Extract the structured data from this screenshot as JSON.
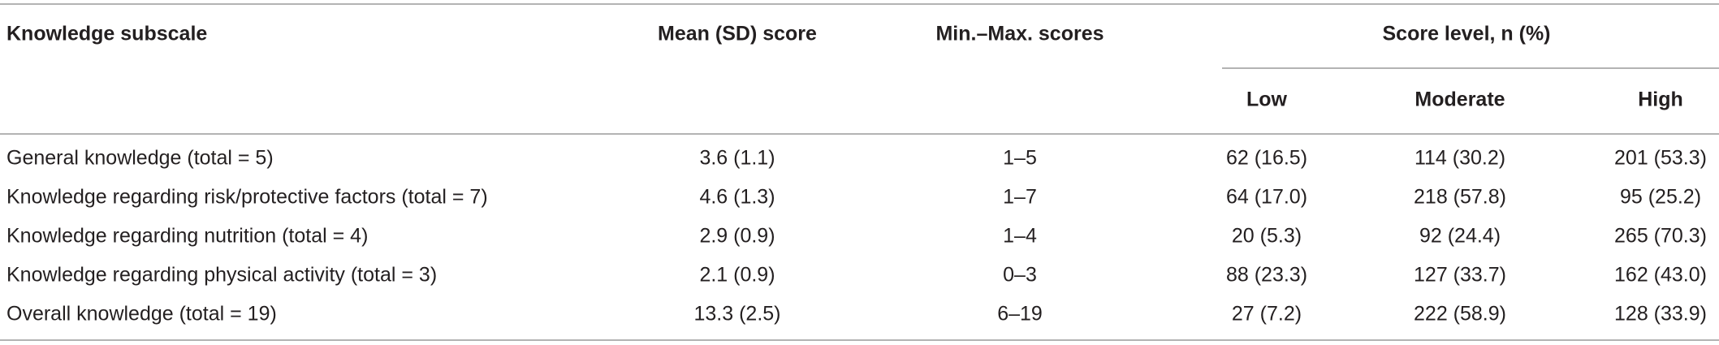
{
  "table": {
    "columns": [
      "Knowledge subscale",
      "Mean (SD) score",
      "Min.–Max. scores",
      "Score level, n (%)"
    ],
    "subcolumns": [
      "Low",
      "Moderate",
      "High"
    ],
    "rows": [
      [
        "General knowledge (total = 5)",
        "3.6 (1.1)",
        "1–5",
        "62 (16.5)",
        "114 (30.2)",
        "201 (53.3)"
      ],
      [
        "Knowledge regarding risk/protective factors (total = 7)",
        "4.6 (1.3)",
        "1–7",
        "64 (17.0)",
        "218 (57.8)",
        "95 (25.2)"
      ],
      [
        "Knowledge regarding nutrition (total = 4)",
        "2.9 (0.9)",
        "1–4",
        "20 (5.3)",
        "92 (24.4)",
        "265 (70.3)"
      ],
      [
        "Knowledge regarding physical activity (total = 3)",
        "2.1 (0.9)",
        "0–3",
        "88 (23.3)",
        "127 (33.7)",
        "162 (43.0)"
      ],
      [
        "Overall knowledge (total = 19)",
        "13.3 (2.5)",
        "6–19",
        "27 (7.2)",
        "222 (58.9)",
        "128 (33.9)"
      ]
    ]
  }
}
